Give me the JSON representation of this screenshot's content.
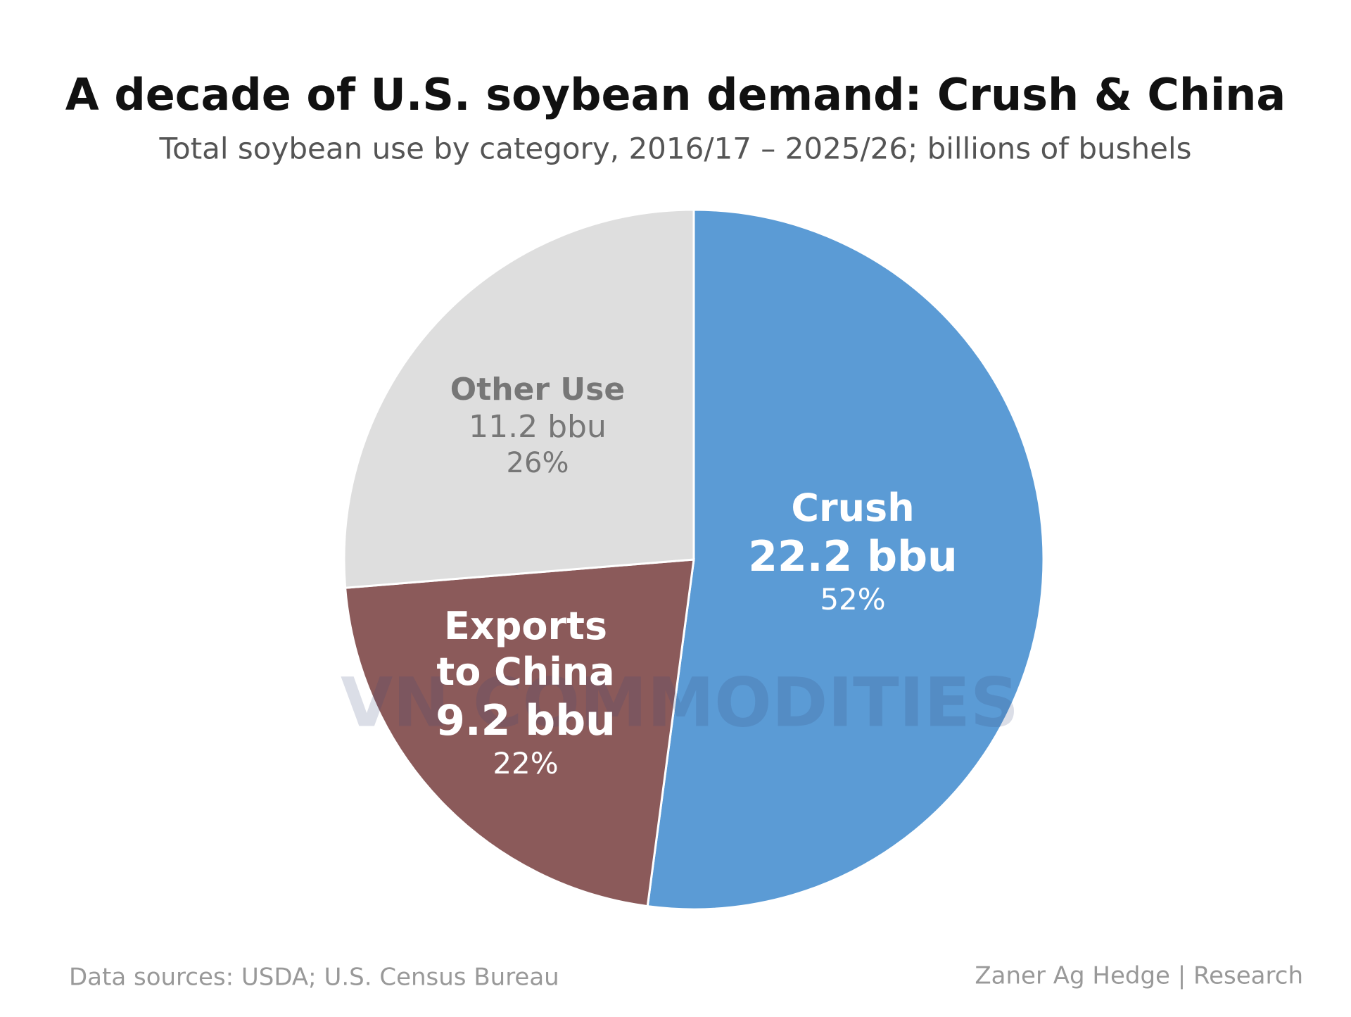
{
  "chart_data": {
    "type": "pie",
    "title": "A decade of U.S. soybean demand: Crush & China",
    "subtitle": "Total soybean use by category, 2016/17 – 2025/26; billions of bushels",
    "categories": [
      "Crush",
      "Exports to China",
      "Other Use"
    ],
    "values": [
      22.2,
      9.2,
      11.2
    ],
    "value_labels": [
      "22.2 bbu",
      "9.2 bbu",
      "11.2 bbu"
    ],
    "percents": [
      52,
      22,
      26
    ],
    "percent_labels": [
      "52%",
      "22%",
      "26%"
    ],
    "colors": [
      "#5b9bd5",
      "#8b5a5a",
      "#dedede"
    ],
    "source": "Data sources: USDA; U.S. Census Bureau",
    "credit": "Zaner Ag Hedge | Research",
    "watermark": "VN COMMODITIES"
  }
}
